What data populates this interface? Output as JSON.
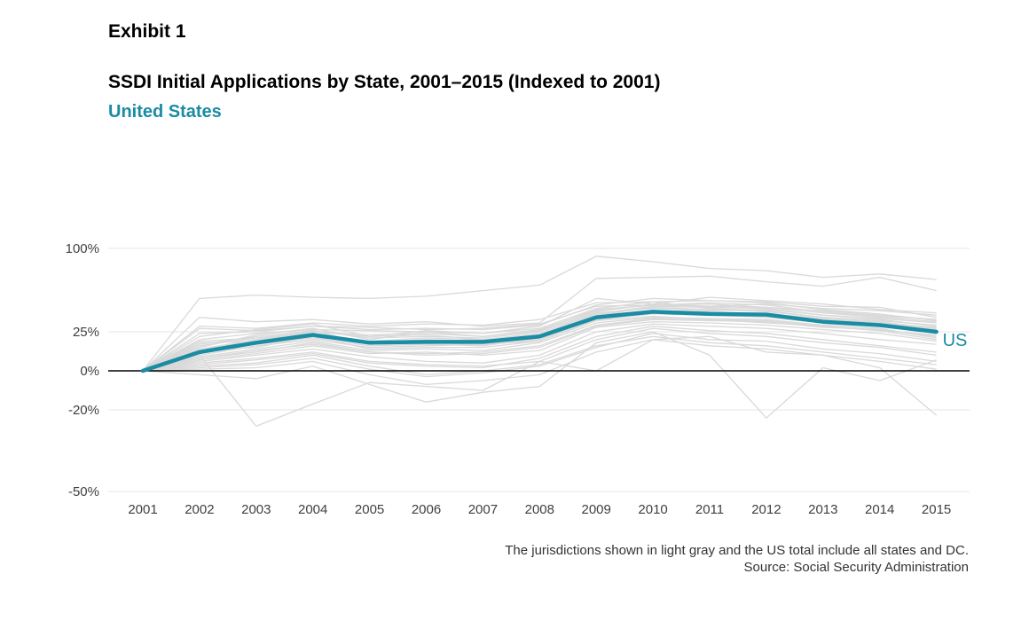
{
  "header": {
    "exhibit": "Exhibit 1",
    "title": "SSDI Initial Applications by State, 2001–2015 (Indexed to 2001)",
    "subtitle": "United States"
  },
  "colors": {
    "highlight": "#1A8CA3",
    "states": "#D9D9D9",
    "grid": "#E6E6E6",
    "zero_line": "#000000",
    "tick_text": "#404040"
  },
  "footer": {
    "note": "The jurisdictions shown in light gray and the US total include all states and DC.",
    "source": "Source: Social Security Administration"
  },
  "chart_data": {
    "type": "line",
    "title": "SSDI Initial Applications by State, 2001–2015 (Indexed to 2001)",
    "subtitle": "United States",
    "xlabel": "",
    "ylabel": "",
    "categories": [
      "2001",
      "2002",
      "2003",
      "2004",
      "2005",
      "2006",
      "2007",
      "2008",
      "2009",
      "2010",
      "2011",
      "2012",
      "2013",
      "2014",
      "2015"
    ],
    "ylim": [
      -0.5,
      1.0
    ],
    "yticks": [
      {
        "value": 1.0,
        "label": "100%"
      },
      {
        "value": 0.25,
        "label": "25%"
      },
      {
        "value": 0.0,
        "label": "0%"
      },
      {
        "value": -0.2,
        "label": "-20%"
      },
      {
        "value": -0.5,
        "label": "-50%"
      }
    ],
    "ytick_positions": [
      1.0,
      0.25,
      0.0,
      -0.2,
      -0.5
    ],
    "grid": true,
    "highlight_series": {
      "name": "US",
      "values": [
        0,
        0.12,
        0.18,
        0.23,
        0.18,
        0.185,
        0.185,
        0.22,
        0.38,
        0.43,
        0.41,
        0.405,
        0.34,
        0.31,
        0.25
      ]
    },
    "series": [
      {
        "values": [
          0,
          0.55,
          0.58,
          0.56,
          0.55,
          0.57,
          0.62,
          0.67,
          0.93,
          0.88,
          0.82,
          0.8,
          0.74,
          0.77,
          0.72
        ]
      },
      {
        "values": [
          0,
          0.38,
          0.34,
          0.36,
          0.32,
          0.34,
          0.3,
          0.33,
          0.73,
          0.74,
          0.75,
          0.7,
          0.66,
          0.74,
          0.62
        ]
      },
      {
        "values": [
          0,
          0.3,
          0.28,
          0.33,
          0.3,
          0.32,
          0.31,
          0.36,
          0.51,
          0.52,
          0.53,
          0.52,
          0.48,
          0.47,
          0.38
        ]
      },
      {
        "values": [
          0,
          0.28,
          0.26,
          0.3,
          0.29,
          0.27,
          0.28,
          0.32,
          0.48,
          0.49,
          0.48,
          0.5,
          0.46,
          0.44,
          0.4
        ]
      },
      {
        "values": [
          0,
          0.22,
          0.27,
          0.32,
          0.22,
          0.26,
          0.24,
          0.3,
          0.55,
          0.5,
          0.56,
          0.53,
          0.5,
          0.45,
          0.42
        ]
      },
      {
        "values": [
          0,
          0.15,
          0.23,
          0.28,
          0.2,
          0.25,
          0.22,
          0.26,
          0.45,
          0.49,
          0.5,
          0.47,
          0.44,
          0.4,
          0.36
        ]
      },
      {
        "values": [
          0,
          0.14,
          0.2,
          0.25,
          0.22,
          0.23,
          0.2,
          0.24,
          0.42,
          0.46,
          0.44,
          0.45,
          0.4,
          0.36,
          0.3
        ]
      },
      {
        "values": [
          0,
          0.1,
          0.16,
          0.2,
          0.15,
          0.16,
          0.17,
          0.19,
          0.36,
          0.41,
          0.4,
          0.38,
          0.33,
          0.3,
          0.25
        ]
      },
      {
        "values": [
          0,
          0.08,
          0.12,
          0.18,
          0.12,
          0.1,
          0.11,
          0.15,
          0.3,
          0.36,
          0.35,
          0.34,
          0.29,
          0.27,
          0.22
        ]
      },
      {
        "values": [
          0,
          0.06,
          0.1,
          0.14,
          0.09,
          0.06,
          0.05,
          0.1,
          0.25,
          0.32,
          0.3,
          0.28,
          0.24,
          0.2,
          0.17
        ]
      },
      {
        "values": [
          0,
          0.05,
          0.08,
          0.12,
          0.06,
          0.04,
          0.03,
          0.06,
          0.2,
          0.28,
          0.24,
          0.22,
          0.18,
          0.15,
          0.1
        ]
      },
      {
        "values": [
          0,
          0.03,
          0.05,
          0.1,
          0.03,
          -0.02,
          0.0,
          0.04,
          0.16,
          0.22,
          0.18,
          0.16,
          0.12,
          0.08,
          0.04
        ]
      },
      {
        "values": [
          0,
          -0.02,
          -0.04,
          0.03,
          -0.07,
          -0.16,
          -0.11,
          -0.08,
          0.18,
          0.25,
          0.1,
          -0.23,
          0.02,
          -0.05,
          0.07
        ]
      },
      {
        "values": [
          0,
          0.1,
          -0.26,
          -0.17,
          -0.06,
          -0.08,
          -0.1,
          0.06,
          0.0,
          0.2,
          0.22,
          0.12,
          0.1,
          0.02,
          -0.22
        ]
      },
      {
        "values": [
          0,
          0.2,
          0.24,
          0.27,
          0.26,
          0.25,
          0.24,
          0.28,
          0.46,
          0.52,
          0.46,
          0.44,
          0.38,
          0.34,
          0.28
        ]
      },
      {
        "values": [
          0,
          0.18,
          0.19,
          0.26,
          0.17,
          0.19,
          0.18,
          0.2,
          0.4,
          0.44,
          0.43,
          0.41,
          0.36,
          0.33,
          0.27
        ]
      },
      {
        "values": [
          0,
          0.12,
          0.17,
          0.21,
          0.16,
          0.17,
          0.16,
          0.21,
          0.38,
          0.42,
          0.41,
          0.4,
          0.35,
          0.31,
          0.24
        ]
      },
      {
        "values": [
          0,
          0.09,
          0.14,
          0.19,
          0.13,
          0.14,
          0.13,
          0.18,
          0.33,
          0.38,
          0.37,
          0.36,
          0.31,
          0.28,
          0.21
        ]
      },
      {
        "values": [
          0,
          0.16,
          0.21,
          0.24,
          0.19,
          0.21,
          0.2,
          0.22,
          0.4,
          0.47,
          0.45,
          0.43,
          0.38,
          0.35,
          0.31
        ]
      },
      {
        "values": [
          0,
          0.07,
          0.11,
          0.16,
          0.11,
          0.12,
          0.1,
          0.13,
          0.29,
          0.34,
          0.33,
          0.31,
          0.27,
          0.24,
          0.19
        ]
      },
      {
        "values": [
          0,
          0.11,
          0.18,
          0.22,
          0.18,
          0.2,
          0.19,
          0.23,
          0.41,
          0.48,
          0.47,
          0.46,
          0.4,
          0.37,
          0.33
        ]
      },
      {
        "values": [
          0,
          0.13,
          0.15,
          0.22,
          0.14,
          0.15,
          0.15,
          0.19,
          0.35,
          0.39,
          0.36,
          0.35,
          0.3,
          0.26,
          0.2
        ]
      },
      {
        "values": [
          0,
          0.04,
          0.07,
          0.11,
          0.05,
          0.03,
          0.02,
          0.08,
          0.22,
          0.3,
          0.26,
          0.24,
          0.2,
          0.16,
          0.12
        ]
      },
      {
        "values": [
          0,
          0.17,
          0.22,
          0.26,
          0.21,
          0.22,
          0.21,
          0.25,
          0.43,
          0.5,
          0.48,
          0.47,
          0.42,
          0.38,
          0.34
        ]
      },
      {
        "values": [
          0,
          0.24,
          0.25,
          0.3,
          0.27,
          0.28,
          0.27,
          0.31,
          0.49,
          0.55,
          0.53,
          0.51,
          0.45,
          0.41,
          0.35
        ]
      },
      {
        "values": [
          0,
          0.01,
          0.02,
          0.06,
          -0.02,
          -0.07,
          -0.05,
          -0.02,
          0.12,
          0.2,
          0.16,
          0.14,
          0.1,
          0.06,
          0.01
        ]
      },
      {
        "values": [
          0,
          0.13,
          0.2,
          0.23,
          0.17,
          0.18,
          0.17,
          0.2,
          0.37,
          0.43,
          0.42,
          0.41,
          0.37,
          0.33,
          0.29
        ]
      },
      {
        "values": [
          0,
          0.08,
          0.13,
          0.17,
          0.12,
          0.11,
          0.12,
          0.16,
          0.31,
          0.37,
          0.36,
          0.33,
          0.3,
          0.26,
          0.23
        ]
      },
      {
        "values": [
          0,
          0.19,
          0.21,
          0.25,
          0.23,
          0.24,
          0.22,
          0.27,
          0.44,
          0.49,
          0.51,
          0.49,
          0.43,
          0.39,
          0.36
        ]
      },
      {
        "values": [
          0,
          0.02,
          0.04,
          0.08,
          0.01,
          -0.03,
          -0.01,
          0.03,
          0.15,
          0.24,
          0.2,
          0.19,
          0.14,
          0.11,
          0.06
        ]
      }
    ]
  }
}
